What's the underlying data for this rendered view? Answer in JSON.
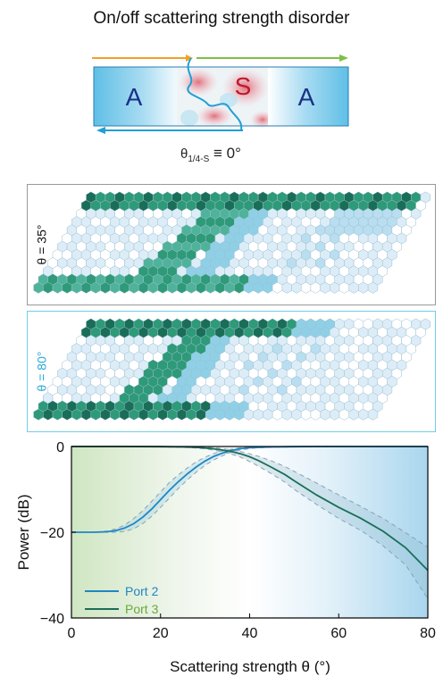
{
  "figure": {
    "title": "On/off scattering strength disorder",
    "schematic": {
      "region_left": "A",
      "region_middle": "S",
      "region_right": "A",
      "angle_label_main": "θ",
      "angle_label_sub": "1/4-S",
      "angle_label_value": " ≡ 0°"
    },
    "panels": [
      {
        "label": "θ = 35°",
        "border_color": "#9a9a9a",
        "label_color": "#222222"
      },
      {
        "label": "θ = 80°",
        "border_color": "#6fcfe8",
        "label_color": "#29a9d6"
      }
    ]
  },
  "chart_data": {
    "type": "line",
    "xlabel": "Scattering strength θ (°)",
    "ylabel": "Power (dB)",
    "xlim": [
      0,
      80
    ],
    "ylim": [
      -40,
      0
    ],
    "xticks": [
      0,
      20,
      40,
      60,
      80
    ],
    "yticks": [
      0,
      -20,
      -40
    ],
    "legend_position": "bottom-left",
    "series": [
      {
        "name": "Port 2",
        "color": "#1f86c4",
        "x": [
          0,
          5,
          8,
          10,
          12,
          14,
          16,
          18,
          20,
          22,
          24,
          26,
          28,
          30,
          32,
          34,
          36,
          38,
          40,
          42,
          45,
          50,
          55,
          60,
          70,
          80
        ],
        "y": [
          -20,
          -20,
          -19.9,
          -19.6,
          -19,
          -18,
          -16.5,
          -14.6,
          -12.4,
          -10.2,
          -8.2,
          -6.4,
          -4.8,
          -3.4,
          -2.3,
          -1.5,
          -0.9,
          -0.5,
          -0.3,
          -0.2,
          -0.1,
          -0.05,
          0,
          0,
          0,
          0
        ],
        "band_low": [
          -20,
          -20,
          -20,
          -20,
          -19.8,
          -19.2,
          -18,
          -16.3,
          -14.2,
          -12,
          -9.8,
          -7.8,
          -6,
          -4.4,
          -3.1,
          -2.1,
          -1.3,
          -0.8,
          -0.5,
          -0.3,
          -0.2,
          -0.1,
          -0.1,
          0,
          0,
          0
        ],
        "band_high": [
          -20,
          -20,
          -19.7,
          -19.2,
          -18.3,
          -16.8,
          -15,
          -12.8,
          -10.6,
          -8.4,
          -6.6,
          -5,
          -3.6,
          -2.5,
          -1.6,
          -1,
          -0.6,
          -0.3,
          -0.1,
          -0.1,
          0,
          0,
          0,
          0,
          0,
          0
        ]
      },
      {
        "name": "Port 3",
        "color": "#1a6e58",
        "x": [
          0,
          10,
          20,
          25,
          28,
          30,
          32,
          34,
          36,
          38,
          40,
          42,
          45,
          48,
          50,
          55,
          60,
          65,
          70,
          75,
          80
        ],
        "y": [
          0,
          0,
          -0.05,
          -0.1,
          -0.2,
          -0.35,
          -0.55,
          -0.85,
          -1.2,
          -1.7,
          -2.4,
          -3.3,
          -4.9,
          -6.6,
          -8,
          -11.3,
          -14.2,
          -16.8,
          -19.8,
          -23.6,
          -28.9
        ],
        "band_low": [
          0,
          0,
          -0.1,
          -0.2,
          -0.35,
          -0.55,
          -0.85,
          -1.3,
          -1.8,
          -2.5,
          -3.5,
          -4.6,
          -6.4,
          -8.4,
          -10,
          -13.5,
          -16.8,
          -19.6,
          -23.2,
          -27.6,
          -35.5
        ],
        "band_high": [
          0,
          0,
          0,
          0,
          -0.1,
          -0.2,
          -0.3,
          -0.5,
          -0.8,
          -1.2,
          -1.7,
          -2.3,
          -3.4,
          -4.7,
          -5.8,
          -8.5,
          -11.3,
          -14,
          -16.8,
          -20.1,
          -23.5
        ]
      }
    ]
  }
}
